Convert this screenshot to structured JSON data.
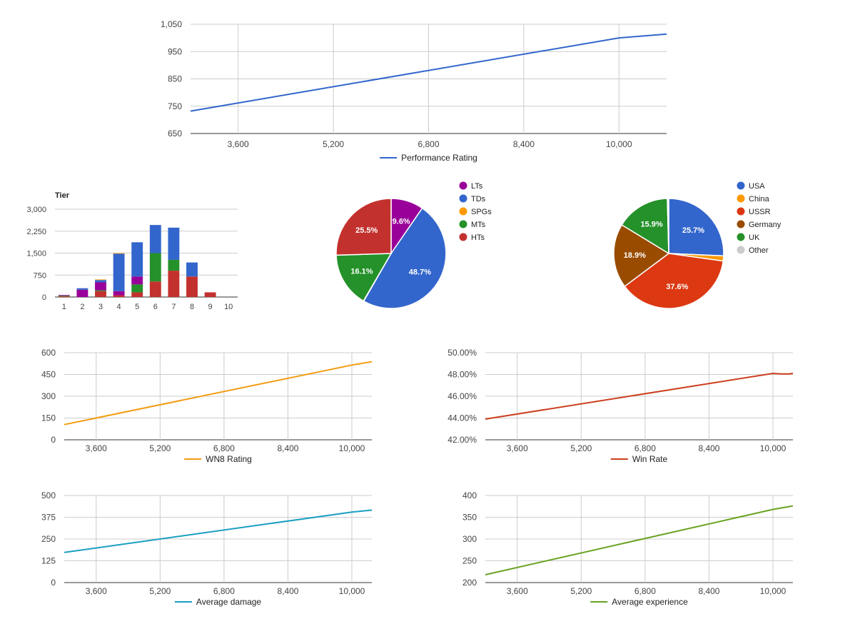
{
  "colors": {
    "performance": "#3366cc",
    "wn8": "#f39c12",
    "winrate": "#cc3f1e",
    "damage": "#1a9fc2",
    "experience": "#6aa321",
    "tier_htt": "#c3312e",
    "tier_mt": "#25912a",
    "tier_lt": "#990099",
    "tier_td": "#3366cc",
    "tier_spg": "#ff9900"
  },
  "chart_data": [
    {
      "id": "performance",
      "type": "line",
      "legend": "Performance Rating",
      "x_ticks": [
        "3,600",
        "5,200",
        "6,800",
        "8,400",
        "10,000"
      ],
      "x_tick_values": [
        3600,
        5200,
        6800,
        8400,
        10000
      ],
      "y_ticks": [
        "1,050",
        "950",
        "850",
        "750",
        "650"
      ],
      "y_tick_values": [
        1050,
        950,
        850,
        750,
        650
      ],
      "xlim": [
        2800,
        10800
      ],
      "ylim": [
        650,
        1050
      ],
      "x": [
        2800,
        10000,
        10800
      ],
      "y": [
        732,
        1000,
        1014
      ],
      "grid": true,
      "legend_position": "bottom"
    },
    {
      "id": "tier",
      "type": "bar",
      "stacked": true,
      "title": "Tier",
      "categories": [
        "1",
        "2",
        "3",
        "4",
        "5",
        "6",
        "7",
        "8",
        "9",
        "10"
      ],
      "y_ticks": [
        "3,000",
        "2,250",
        "1,500",
        "750",
        "0"
      ],
      "y_tick_values": [
        3000,
        2250,
        1500,
        750,
        0
      ],
      "ylim": [
        0,
        3000
      ],
      "series": [
        {
          "color_key": "tier_htt",
          "values": [
            30,
            0,
            200,
            60,
            160,
            530,
            900,
            700,
            160,
            0
          ]
        },
        {
          "color_key": "tier_mt",
          "values": [
            20,
            0,
            30,
            0,
            270,
            970,
            370,
            0,
            0,
            0
          ]
        },
        {
          "color_key": "tier_lt",
          "values": [
            20,
            250,
            270,
            140,
            270,
            0,
            0,
            0,
            0,
            0
          ]
        },
        {
          "color_key": "tier_td",
          "values": [
            0,
            50,
            80,
            1280,
            1170,
            960,
            1100,
            480,
            0,
            0
          ]
        },
        {
          "color_key": "tier_spg",
          "values": [
            0,
            0,
            20,
            20,
            0,
            0,
            0,
            0,
            0,
            0
          ]
        }
      ],
      "grid": true
    },
    {
      "id": "classes",
      "type": "pie",
      "slices": [
        {
          "name": "LTs",
          "value": 9.6,
          "label": "9.6%",
          "color": "#990099"
        },
        {
          "name": "TDs",
          "value": 48.7,
          "label": "48.7%",
          "color": "#3366cc"
        },
        {
          "name": "SPGs",
          "value": 0.1,
          "label": "",
          "color": "#ff9900"
        },
        {
          "name": "MTs",
          "value": 16.1,
          "label": "16.1%",
          "color": "#25912a"
        },
        {
          "name": "HTs",
          "value": 25.5,
          "label": "25.5%",
          "color": "#c3312e"
        }
      ],
      "legend_position": "right"
    },
    {
      "id": "nations",
      "type": "pie",
      "slices": [
        {
          "name": "USA",
          "value": 25.7,
          "label": "25.7%",
          "color": "#3366cc"
        },
        {
          "name": "China",
          "value": 1.5,
          "label": "",
          "color": "#ff9900"
        },
        {
          "name": "USSR",
          "value": 37.6,
          "label": "37.6%",
          "color": "#dc3912"
        },
        {
          "name": "Germany",
          "value": 18.9,
          "label": "18.9%",
          "color": "#994c00"
        },
        {
          "name": "UK",
          "value": 15.9,
          "label": "15.9%",
          "color": "#25912a"
        },
        {
          "name": "Other",
          "value": 0.4,
          "label": "",
          "color": "#cccccc"
        }
      ],
      "legend_position": "right"
    },
    {
      "id": "wn8",
      "type": "line",
      "legend": "WN8 Rating",
      "x_ticks": [
        "3,600",
        "5,200",
        "6,800",
        "8,400",
        "10,000"
      ],
      "x_tick_values": [
        3600,
        5200,
        6800,
        8400,
        10000
      ],
      "y_ticks": [
        "600",
        "450",
        "300",
        "150",
        "0"
      ],
      "y_tick_values": [
        600,
        450,
        300,
        150,
        0
      ],
      "xlim": [
        2800,
        10500
      ],
      "ylim": [
        0,
        600
      ],
      "x": [
        2800,
        10000,
        10500
      ],
      "y": [
        105,
        515,
        538
      ],
      "grid": true,
      "legend_position": "bottom"
    },
    {
      "id": "winrate",
      "type": "line",
      "legend": "Win Rate",
      "x_ticks": [
        "3,600",
        "5,200",
        "6,800",
        "8,400",
        "10,000"
      ],
      "x_tick_values": [
        3600,
        5200,
        6800,
        8400,
        10000
      ],
      "y_ticks": [
        "50.00%",
        "48.00%",
        "46.00%",
        "44.00%",
        "42.00%"
      ],
      "y_tick_values": [
        50,
        48,
        46,
        44,
        42
      ],
      "xlim": [
        2800,
        10500
      ],
      "ylim": [
        42,
        50
      ],
      "x": [
        2800,
        10000,
        10200,
        10400,
        10500
      ],
      "y": [
        43.9,
        48.1,
        48.05,
        48.05,
        48.1
      ],
      "grid": true,
      "legend_position": "bottom"
    },
    {
      "id": "damage",
      "type": "line",
      "legend": "Average damage",
      "x_ticks": [
        "3,600",
        "5,200",
        "6,800",
        "8,400",
        "10,000"
      ],
      "x_tick_values": [
        3600,
        5200,
        6800,
        8400,
        10000
      ],
      "y_ticks": [
        "500",
        "375",
        "250",
        "125",
        "0"
      ],
      "y_tick_values": [
        500,
        375,
        250,
        125,
        0
      ],
      "xlim": [
        2800,
        10500
      ],
      "ylim": [
        0,
        500
      ],
      "x": [
        2800,
        10000,
        10500
      ],
      "y": [
        173,
        405,
        416
      ],
      "grid": true,
      "legend_position": "bottom"
    },
    {
      "id": "experience",
      "type": "line",
      "legend": "Average experience",
      "x_ticks": [
        "3,600",
        "5,200",
        "6,800",
        "8,400",
        "10,000"
      ],
      "x_tick_values": [
        3600,
        5200,
        6800,
        8400,
        10000
      ],
      "y_ticks": [
        "400",
        "350",
        "300",
        "250",
        "200"
      ],
      "y_tick_values": [
        400,
        350,
        300,
        250,
        200
      ],
      "xlim": [
        2800,
        10500
      ],
      "ylim": [
        200,
        400
      ],
      "x": [
        2800,
        10000,
        10500
      ],
      "y": [
        218,
        368,
        376
      ],
      "grid": true,
      "legend_position": "bottom"
    }
  ]
}
